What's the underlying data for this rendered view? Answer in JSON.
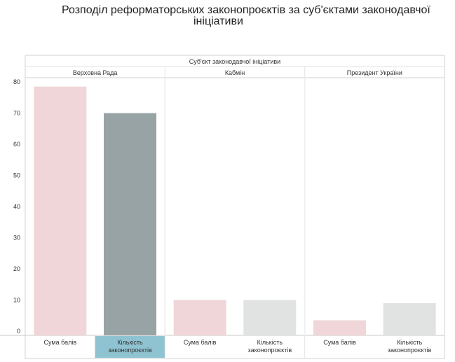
{
  "title_line1": "Розподіл реформаторських законопроєктів за суб'єктами законодавчої",
  "title_line2": "ініціативи",
  "chart_data": {
    "type": "bar",
    "title": "Розподіл реформаторських законопроєктів за суб'єктами законодавчої ініціативи",
    "group_header": "Суб'єкт законодавчої ініціативи",
    "groups": [
      {
        "name": "Верховна Рада",
        "bars": [
          {
            "label": "Сума балів",
            "value": 78.5,
            "color": "#f0d6d8"
          },
          {
            "label": "Кількість законопроєктів",
            "value": 70,
            "color": "#98a3a5",
            "label_highlight": "#8fc3d2"
          }
        ]
      },
      {
        "name": "Кабмін",
        "bars": [
          {
            "label": "Сума балів",
            "value": 10,
            "color": "#f0d6d8"
          },
          {
            "label": "Кількість законопроєктів",
            "value": 10,
            "color": "#e1e3e2"
          }
        ]
      },
      {
        "name": "Президент України",
        "bars": [
          {
            "label": "Сума балів",
            "value": 3.5,
            "color": "#f0d6d8"
          },
          {
            "label": "Кількість законопроєктів",
            "value": 9,
            "color": "#e1e3e2"
          }
        ]
      }
    ],
    "y_ticks": [
      0,
      10,
      20,
      30,
      40,
      50,
      60,
      70,
      80
    ],
    "ylim": [
      0,
      82
    ],
    "grid": false
  }
}
